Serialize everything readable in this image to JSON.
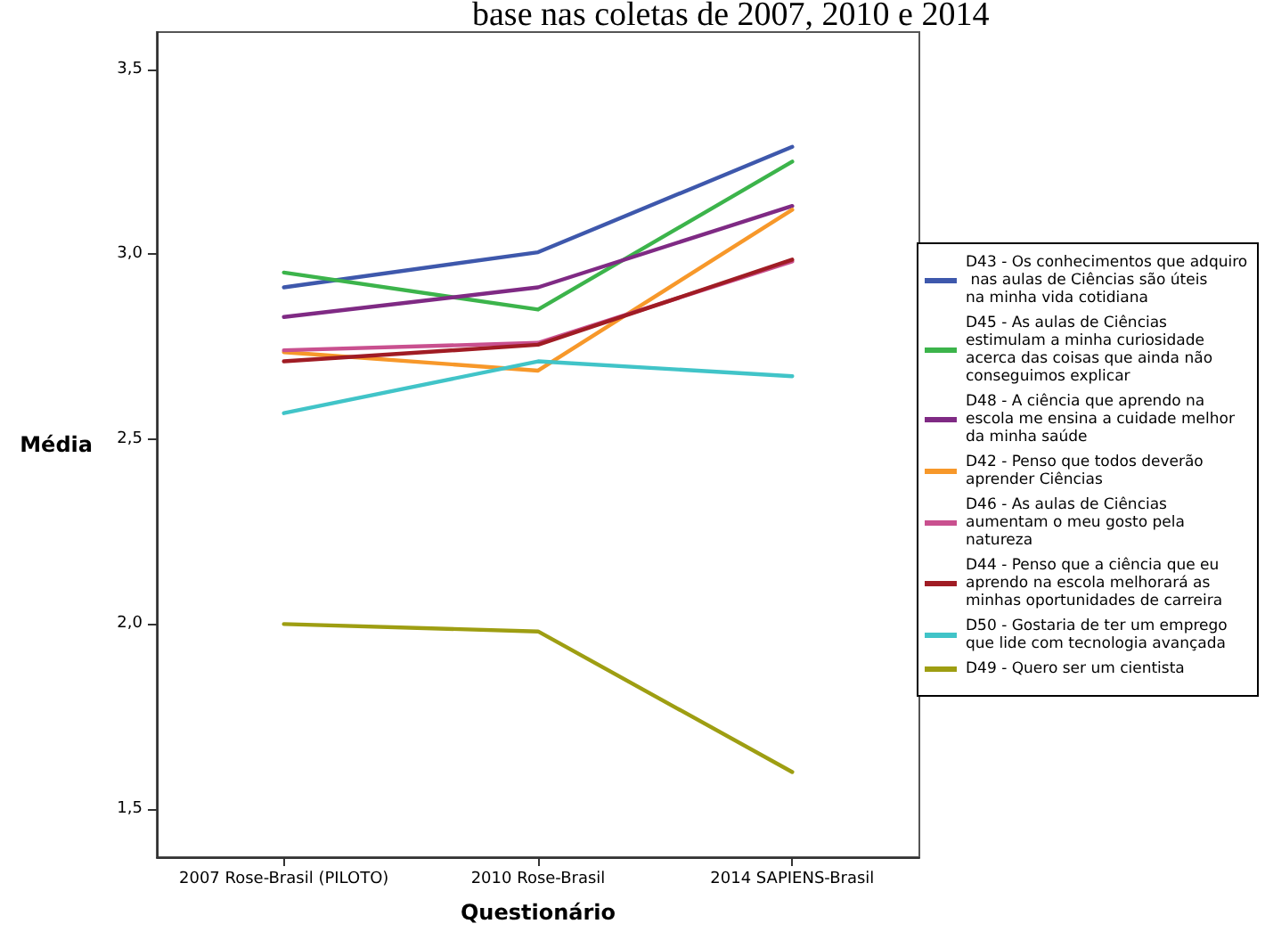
{
  "chart_data": {
    "type": "line",
    "title": "base nas coletas de 2007, 2010 e 2014",
    "xlabel": "Questionário",
    "ylabel": "Média",
    "categories": [
      "2007 Rose-Brasil (PILOTO)",
      "2010 Rose-Brasil",
      "2014 SAPIENS-Brasil"
    ],
    "series": [
      {
        "name": "D43 - Os conhecimentos que adquiro nas aulas de Ciências são úteis na minha vida cotidiana",
        "color": "#3e58ac",
        "values": [
          2.91,
          3.005,
          3.29
        ]
      },
      {
        "name": "D45 - As aulas de Ciências estimulam a minha curiosidade acerca das coisas que ainda não conseguimos explicar",
        "color": "#3cb44b",
        "values": [
          2.95,
          2.85,
          3.25
        ]
      },
      {
        "name": "D48 - A ciência que aprendo na escola me ensina a cuidade melhor da minha saúde",
        "color": "#7f2a84",
        "values": [
          2.83,
          2.91,
          3.13
        ]
      },
      {
        "name": "D42 - Penso que todos deverão aprender Ciências",
        "color": "#f7982a",
        "values": [
          2.735,
          2.685,
          3.12
        ]
      },
      {
        "name": "D46 - As aulas de Ciências aumentam o meu gosto pela natureza",
        "color": "#c9508f",
        "values": [
          2.74,
          2.76,
          2.98
        ]
      },
      {
        "name": "D44 - Penso que a ciência que eu aprendo na escola melhorará as minhas oportunidades de carreira",
        "color": "#a01c24",
        "values": [
          2.71,
          2.755,
          2.985
        ]
      },
      {
        "name": "D50 - Gostaria de ter um emprego que lide com tecnologia avançada",
        "color": "#41c4c8",
        "values": [
          2.57,
          2.71,
          2.67
        ]
      },
      {
        "name": "D49 - Quero ser um cientista",
        "color": "#9e9e12",
        "values": [
          2.0,
          1.98,
          1.6
        ]
      }
    ],
    "ylim": [
      1.37,
      3.6
    ],
    "yticks": [
      {
        "value": 1.5,
        "label": "1,5"
      },
      {
        "value": 2.0,
        "label": "2,0"
      },
      {
        "value": 2.5,
        "label": "2,5"
      },
      {
        "value": 3.0,
        "label": "3,0"
      },
      {
        "value": 3.5,
        "label": "3,5"
      }
    ],
    "grid": false,
    "legend": "right",
    "marker": "none",
    "line_style": "solid"
  }
}
